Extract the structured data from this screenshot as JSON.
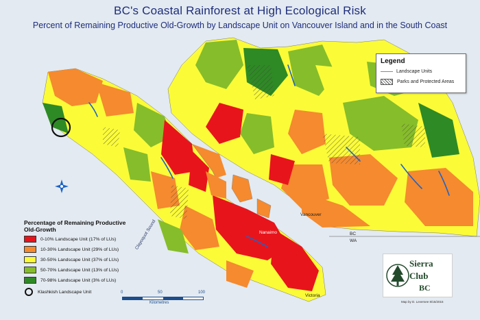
{
  "header": {
    "title": "BC's Coastal Rainforest at High Ecological Risk",
    "subtitle": "Percent of Remaining Productive Old-Growth by Landscape Unit on Vancouver Island and in the South Coast"
  },
  "legend": {
    "title": "Legend",
    "items": [
      {
        "label": "Landscape Units",
        "symbol": "line"
      },
      {
        "label": "Parks and Protected Areas",
        "symbol": "hatch"
      }
    ]
  },
  "ramp": {
    "title": "Percentage of Remaining Productive Old-Growth",
    "classes": [
      {
        "label": "0-10% Landscape Unit (17% of LUs)",
        "color": "#e8141c"
      },
      {
        "label": "10-30% Landscape Unit (29% of LUs)",
        "color": "#f58a2e"
      },
      {
        "label": "30-50% Landscape Unit (37% of LUs)",
        "color": "#fbfb38"
      },
      {
        "label": "50-70% Landscape Unit (13% of LUs)",
        "color": "#86bd2a"
      },
      {
        "label": "70-98% Landscape Unit (3% of LUs)",
        "color": "#2e8a24"
      }
    ],
    "marker_label": "Klashkish Landscape Unit"
  },
  "places": {
    "vancouver": "Vancouver",
    "nanaimo": "Nanaimo",
    "victoria": "Victoria",
    "bc": "BC",
    "wa": "WA",
    "clayoquot": "Clayoquot Sound"
  },
  "scale": {
    "ticks": [
      "0",
      "50",
      "100"
    ],
    "unit": "Kilometres"
  },
  "credit": "Map by D. Leversee 8/15/2015",
  "logo": {
    "line1": "Sierra",
    "line2": "Club",
    "line3": "BC"
  },
  "colors": {
    "water": "#e3eaf1",
    "river": "#1c63c8",
    "boundary": "#555555",
    "title": "#1d2d7c"
  }
}
